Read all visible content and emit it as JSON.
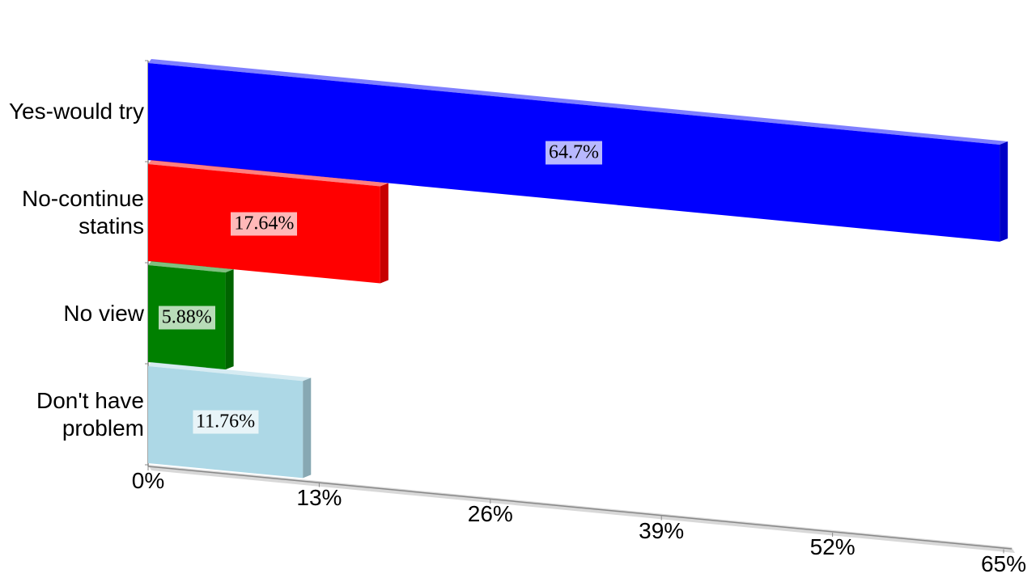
{
  "chart_data": {
    "type": "bar3d-horizontal",
    "categories": [
      "Yes-would try",
      "No-continue statins",
      "No view",
      "Don't have problem"
    ],
    "values": [
      64.7,
      17.64,
      5.88,
      11.76
    ],
    "value_labels": [
      "64.7%",
      "17.64%",
      "5.88%",
      "11.76%"
    ],
    "colors": [
      "#0000ff",
      "#ff0000",
      "#008000",
      "#add8e6"
    ],
    "xlim": [
      0,
      65
    ],
    "xticks": [
      {
        "value": 0,
        "label": "0%"
      },
      {
        "value": 13,
        "label": "13%"
      },
      {
        "value": 26,
        "label": "26%"
      },
      {
        "value": 39,
        "label": "39%"
      },
      {
        "value": 52,
        "label": "52%"
      },
      {
        "value": 65,
        "label": "65%"
      }
    ],
    "grid": false
  }
}
